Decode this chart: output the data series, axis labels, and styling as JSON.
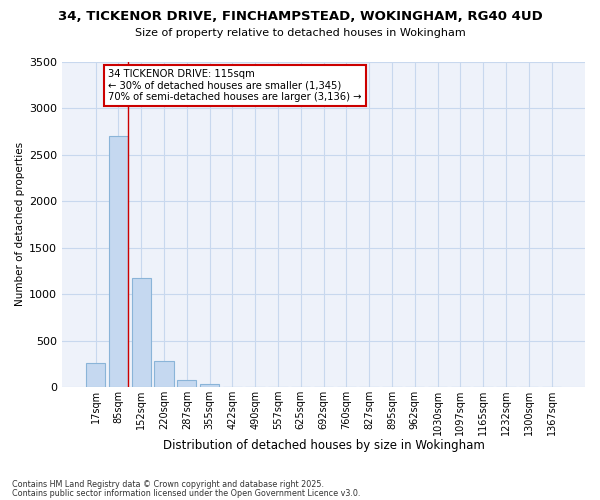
{
  "title_line1": "34, TICKENOR DRIVE, FINCHAMPSTEAD, WOKINGHAM, RG40 4UD",
  "title_line2": "Size of property relative to detached houses in Wokingham",
  "xlabel": "Distribution of detached houses by size in Wokingham",
  "ylabel": "Number of detached properties",
  "categories": [
    "17sqm",
    "85sqm",
    "152sqm",
    "220sqm",
    "287sqm",
    "355sqm",
    "422sqm",
    "490sqm",
    "557sqm",
    "625sqm",
    "692sqm",
    "760sqm",
    "827sqm",
    "895sqm",
    "962sqm",
    "1030sqm",
    "1097sqm",
    "1165sqm",
    "1232sqm",
    "1300sqm",
    "1367sqm"
  ],
  "values": [
    260,
    2700,
    1175,
    285,
    80,
    30,
    0,
    0,
    0,
    0,
    0,
    0,
    0,
    0,
    0,
    0,
    0,
    0,
    0,
    0,
    0
  ],
  "bar_color": "#c5d8f0",
  "bar_edge_color": "#8ab4d8",
  "grid_color": "#c8d8ee",
  "background_color": "#ffffff",
  "ax_background": "#eef2fa",
  "annotation_box_color": "#ffffff",
  "annotation_box_edge": "#cc0000",
  "red_line_x": 1.4,
  "annotation_title": "34 TICKENOR DRIVE: 115sqm",
  "annotation_line1": "← 30% of detached houses are smaller (1,345)",
  "annotation_line2": "70% of semi-detached houses are larger (3,136) →",
  "footer_line1": "Contains HM Land Registry data © Crown copyright and database right 2025.",
  "footer_line2": "Contains public sector information licensed under the Open Government Licence v3.0.",
  "ylim": [
    0,
    3500
  ],
  "yticks": [
    0,
    500,
    1000,
    1500,
    2000,
    2500,
    3000,
    3500
  ]
}
